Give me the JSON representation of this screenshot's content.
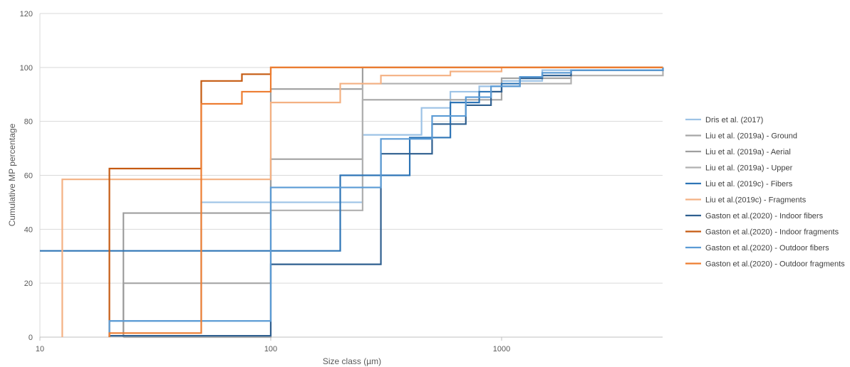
{
  "chart_data": {
    "type": "line",
    "step": true,
    "title": "",
    "xlabel": "Size  class (µm)",
    "ylabel": "Cumulative MP percentage",
    "xscale": "log",
    "xlim": [
      10,
      5000
    ],
    "ylim": [
      0,
      120
    ],
    "x_ticks": [
      10,
      100,
      1000
    ],
    "x_tick_labels": [
      "10",
      "100",
      "1000"
    ],
    "y_ticks": [
      0,
      20,
      40,
      60,
      80,
      100,
      120
    ],
    "y_tick_labels": [
      "0",
      "20",
      "40",
      "60",
      "80",
      "100",
      "120"
    ],
    "grid": "horizontal",
    "legend_position": "right",
    "series": [
      {
        "name": "Dris et al. (2017)",
        "color": "#9dc3e6",
        "x": [
          20,
          50,
          100,
          250,
          450,
          600,
          800,
          1000,
          1500,
          5000
        ],
        "y": [
          6,
          50,
          50,
          75,
          85,
          91,
          93,
          95,
          99,
          99
        ]
      },
      {
        "name": "Liu et al. (2019a) - Ground",
        "color": "#a6a6a6",
        "x": [
          23,
          100,
          250,
          1000,
          2000,
          5000
        ],
        "y": [
          20,
          66,
          88,
          96,
          99,
          99
        ]
      },
      {
        "name": "Liu et al. (2019a) - Aerial",
        "color": "#9f9f9f",
        "x": [
          23,
          100,
          250,
          1000,
          2000,
          5000
        ],
        "y": [
          46,
          92,
          100,
          100,
          100,
          100
        ]
      },
      {
        "name": "Liu et al. (2019a) - Upper",
        "color": "#b0b0b0",
        "x": [
          23,
          100,
          250,
          1000,
          2000,
          5000
        ],
        "y": [
          0,
          47,
          94,
          94,
          97,
          99
        ]
      },
      {
        "name": "Liu et al. (2019c) - Fibers",
        "color": "#2e75b6",
        "x": [
          10,
          200,
          400,
          600,
          800,
          1000,
          1200,
          1500,
          2000,
          5000
        ],
        "y": [
          32,
          60,
          74,
          87,
          91,
          94,
          96,
          98,
          99,
          100
        ]
      },
      {
        "name": "Liu et al.(2019c) - Fragments",
        "color": "#f4b183",
        "x": [
          12.5,
          100,
          200,
          300,
          600,
          1000,
          5000
        ],
        "y": [
          58.5,
          87,
          94,
          97,
          98.5,
          100,
          100
        ]
      },
      {
        "name": "Gaston et al.(2020) - Indoor fibers",
        "color": "#2f5f8f",
        "x": [
          20,
          100,
          300,
          500,
          700,
          900,
          1000,
          1200,
          1500,
          2000,
          5000
        ],
        "y": [
          0.5,
          27,
          68,
          79,
          86,
          91,
          93,
          96,
          97,
          99,
          100
        ]
      },
      {
        "name": "Gaston et al.(2020) - Indoor fragments",
        "color": "#c55a11",
        "x": [
          20,
          50,
          75,
          100,
          5000
        ],
        "y": [
          62.5,
          95,
          97.5,
          100,
          100
        ]
      },
      {
        "name": "Gaston et al.(2020) - Outdoor fibers",
        "color": "#5b9bd5",
        "x": [
          20,
          100,
          300,
          500,
          700,
          900,
          1200,
          1500,
          2000,
          5000
        ],
        "y": [
          6,
          55.5,
          73.5,
          82,
          89,
          93,
          96.5,
          98,
          99,
          100
        ]
      },
      {
        "name": "Gaston et al.(2020) - Outdoor fragments",
        "color": "#ed7d31",
        "x": [
          20,
          50,
          75,
          100,
          5000
        ],
        "y": [
          1.5,
          86.5,
          91,
          100,
          100
        ]
      }
    ]
  }
}
